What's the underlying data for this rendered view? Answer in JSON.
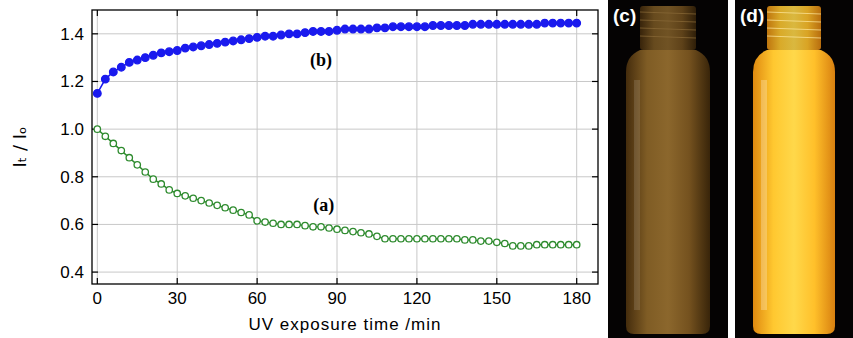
{
  "chart_data": {
    "type": "scatter",
    "x_label": "UV exposure time /min",
    "y_label": "Iₜ / Iₒ",
    "xlim": [
      -2,
      188
    ],
    "ylim": [
      0.35,
      1.5
    ],
    "xticks": [
      0,
      30,
      60,
      90,
      120,
      150,
      180
    ],
    "yticks": [
      0.4,
      0.6,
      0.8,
      {
        "value": 1,
        "label": "1.0"
      },
      1.2,
      1.4
    ],
    "grid": true,
    "legend": false,
    "x": [
      0,
      3,
      6,
      9,
      12,
      15,
      18,
      21,
      24,
      27,
      30,
      33,
      36,
      39,
      42,
      45,
      48,
      51,
      54,
      57,
      60,
      63,
      66,
      69,
      72,
      75,
      78,
      81,
      84,
      87,
      90,
      93,
      96,
      99,
      102,
      105,
      108,
      111,
      114,
      117,
      120,
      123,
      126,
      129,
      132,
      135,
      138,
      141,
      144,
      147,
      150,
      153,
      156,
      159,
      162,
      165,
      168,
      171,
      174,
      177,
      180
    ],
    "series": [
      {
        "color": "#2e8b2e",
        "marker": "circle-open",
        "line_style": "solid",
        "values": [
          1.0,
          0.97,
          0.94,
          0.91,
          0.88,
          0.85,
          0.82,
          0.79,
          0.77,
          0.745,
          0.73,
          0.72,
          0.71,
          0.7,
          0.69,
          0.68,
          0.67,
          0.66,
          0.65,
          0.64,
          0.615,
          0.61,
          0.605,
          0.6,
          0.6,
          0.6,
          0.595,
          0.59,
          0.59,
          0.585,
          0.58,
          0.575,
          0.57,
          0.565,
          0.56,
          0.55,
          0.54,
          0.54,
          0.54,
          0.54,
          0.54,
          0.54,
          0.54,
          0.54,
          0.54,
          0.54,
          0.535,
          0.535,
          0.53,
          0.53,
          0.525,
          0.52,
          0.51,
          0.51,
          0.51,
          0.515,
          0.515,
          0.515,
          0.515,
          0.515,
          0.515
        ]
      },
      {
        "color": "#1a1aee",
        "marker": "circle",
        "line_style": "solid",
        "values": [
          1.15,
          1.21,
          1.24,
          1.26,
          1.28,
          1.29,
          1.3,
          1.31,
          1.32,
          1.325,
          1.33,
          1.34,
          1.345,
          1.35,
          1.355,
          1.36,
          1.365,
          1.37,
          1.375,
          1.38,
          1.385,
          1.39,
          1.39,
          1.395,
          1.4,
          1.4,
          1.405,
          1.41,
          1.41,
          1.41,
          1.415,
          1.42,
          1.42,
          1.42,
          1.42,
          1.425,
          1.425,
          1.43,
          1.43,
          1.43,
          1.43,
          1.43,
          1.435,
          1.435,
          1.435,
          1.435,
          1.435,
          1.44,
          1.44,
          1.44,
          1.44,
          1.44,
          1.44,
          1.44,
          1.44,
          1.44,
          1.445,
          1.445,
          1.445,
          1.445,
          1.445
        ]
      }
    ],
    "annotations": [
      {
        "text": "(a)",
        "x": 85,
        "y": 0.655
      },
      {
        "text": "(b)",
        "x": 84,
        "y": 1.265
      }
    ]
  },
  "photos": [
    {
      "label": "(c)"
    },
    {
      "label": "(d)"
    }
  ]
}
